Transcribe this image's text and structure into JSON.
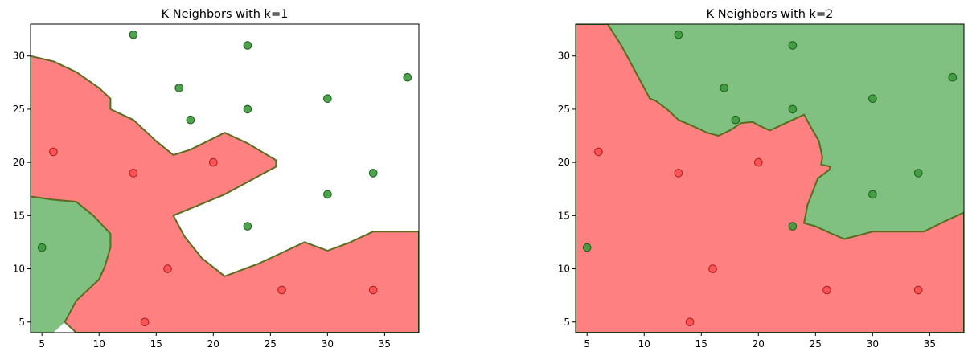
{
  "colors": {
    "red_region": "#ff8080",
    "green_region": "#80c080",
    "red_point": "#ff4d4d",
    "green_point": "#3a9a3a",
    "boundary_green": "#2e7d1a",
    "boundary_red": "#d63a2a"
  },
  "chart_data": [
    {
      "type": "scatter",
      "title": "K Neighbors with k=1",
      "xlabel": "",
      "ylabel": "",
      "xlim": [
        4,
        38
      ],
      "ylim": [
        4,
        33
      ],
      "xticks": [
        5,
        10,
        15,
        20,
        25,
        30,
        35
      ],
      "yticks": [
        5,
        10,
        15,
        20,
        25,
        30
      ],
      "grid": false,
      "points": [
        {
          "x": 6,
          "y": 21,
          "class": "red"
        },
        {
          "x": 13,
          "y": 19,
          "class": "red"
        },
        {
          "x": 20,
          "y": 20,
          "class": "red"
        },
        {
          "x": 16,
          "y": 10,
          "class": "red"
        },
        {
          "x": 14,
          "y": 5,
          "class": "red"
        },
        {
          "x": 26,
          "y": 8,
          "class": "red"
        },
        {
          "x": 34,
          "y": 8,
          "class": "red"
        },
        {
          "x": 13,
          "y": 32,
          "class": "green"
        },
        {
          "x": 23,
          "y": 31,
          "class": "green"
        },
        {
          "x": 17,
          "y": 27,
          "class": "green"
        },
        {
          "x": 18,
          "y": 24,
          "class": "green"
        },
        {
          "x": 23,
          "y": 25,
          "class": "green"
        },
        {
          "x": 30,
          "y": 26,
          "class": "green"
        },
        {
          "x": 37,
          "y": 28,
          "class": "green"
        },
        {
          "x": 34,
          "y": 19,
          "class": "green"
        },
        {
          "x": 30,
          "y": 17,
          "class": "green"
        },
        {
          "x": 23,
          "y": 14,
          "class": "green"
        },
        {
          "x": 5,
          "y": 12,
          "class": "green"
        }
      ],
      "regions": [
        {
          "class": "red",
          "points": [
            [
              4,
              30
            ],
            [
              6,
              29.5
            ],
            [
              8,
              28.5
            ],
            [
              10,
              27
            ],
            [
              11,
              26
            ],
            [
              11,
              25
            ],
            [
              13,
              24
            ],
            [
              15,
              22
            ],
            [
              16.5,
              20.7
            ],
            [
              18,
              21.2
            ],
            [
              21,
              22.8
            ],
            [
              23,
              21.8
            ],
            [
              25.5,
              20.2
            ],
            [
              25.5,
              19.6
            ],
            [
              21,
              17
            ],
            [
              16.5,
              15
            ],
            [
              17.5,
              13
            ],
            [
              19,
              11
            ],
            [
              21,
              9.3
            ],
            [
              24,
              10.5
            ],
            [
              28,
              12.5
            ],
            [
              30,
              11.7
            ],
            [
              32,
              12.5
            ],
            [
              34,
              13.5
            ],
            [
              38,
              13.5
            ],
            [
              38,
              4
            ],
            [
              8,
              4
            ],
            [
              7,
              5
            ],
            [
              8,
              7
            ],
            [
              10,
              9
            ],
            [
              10.5,
              10.2
            ],
            [
              11,
              12
            ],
            [
              11,
              13.3
            ],
            [
              9.5,
              15
            ],
            [
              8,
              16.3
            ],
            [
              6,
              16.5
            ],
            [
              4,
              16.8
            ]
          ]
        },
        {
          "class": "green",
          "points": [
            [
              4,
              16.8
            ],
            [
              6,
              16.5
            ],
            [
              8,
              16.3
            ],
            [
              9.5,
              15
            ],
            [
              11,
              13.3
            ],
            [
              11,
              12
            ],
            [
              10.5,
              10.2
            ],
            [
              10,
              9
            ],
            [
              8,
              7
            ],
            [
              7,
              5
            ],
            [
              6,
              4
            ],
            [
              4,
              4
            ]
          ]
        }
      ]
    },
    {
      "type": "scatter",
      "title": "K Neighbors with k=2",
      "xlabel": "",
      "ylabel": "",
      "xlim": [
        4,
        38
      ],
      "ylim": [
        4,
        33
      ],
      "xticks": [
        5,
        10,
        15,
        20,
        25,
        30,
        35
      ],
      "yticks": [
        5,
        10,
        15,
        20,
        25,
        30
      ],
      "grid": false,
      "points": [
        {
          "x": 6,
          "y": 21,
          "class": "red"
        },
        {
          "x": 13,
          "y": 19,
          "class": "red"
        },
        {
          "x": 20,
          "y": 20,
          "class": "red"
        },
        {
          "x": 16,
          "y": 10,
          "class": "red"
        },
        {
          "x": 14,
          "y": 5,
          "class": "red"
        },
        {
          "x": 26,
          "y": 8,
          "class": "red"
        },
        {
          "x": 34,
          "y": 8,
          "class": "red"
        },
        {
          "x": 13,
          "y": 32,
          "class": "green"
        },
        {
          "x": 23,
          "y": 31,
          "class": "green"
        },
        {
          "x": 17,
          "y": 27,
          "class": "green"
        },
        {
          "x": 18,
          "y": 24,
          "class": "green"
        },
        {
          "x": 23,
          "y": 25,
          "class": "green"
        },
        {
          "x": 30,
          "y": 26,
          "class": "green"
        },
        {
          "x": 37,
          "y": 28,
          "class": "green"
        },
        {
          "x": 34,
          "y": 19,
          "class": "green"
        },
        {
          "x": 30,
          "y": 17,
          "class": "green"
        },
        {
          "x": 23,
          "y": 14,
          "class": "green"
        },
        {
          "x": 5,
          "y": 12,
          "class": "green"
        }
      ],
      "regions": [
        {
          "class": "red",
          "points": [
            [
              4,
              33
            ],
            [
              6.8,
              33
            ],
            [
              8,
              31
            ],
            [
              9,
              29
            ],
            [
              10,
              27
            ],
            [
              10.5,
              26
            ],
            [
              11,
              25.8
            ],
            [
              12,
              25
            ],
            [
              13,
              24
            ],
            [
              14.5,
              23.3
            ],
            [
              15.5,
              22.8
            ],
            [
              16.5,
              22.5
            ],
            [
              17.5,
              23
            ],
            [
              18.5,
              23.7
            ],
            [
              19.5,
              23.8
            ],
            [
              20,
              23.5
            ],
            [
              21,
              23
            ],
            [
              22,
              23.5
            ],
            [
              23,
              24
            ],
            [
              24,
              24.5
            ],
            [
              24.5,
              23.5
            ],
            [
              25.3,
              22
            ],
            [
              25.6,
              20.5
            ],
            [
              25.5,
              19.8
            ],
            [
              26.3,
              19.6
            ],
            [
              26.2,
              19.3
            ],
            [
              25.2,
              18.5
            ],
            [
              24.3,
              16
            ],
            [
              24,
              14.3
            ],
            [
              25,
              14
            ],
            [
              26,
              13.5
            ],
            [
              27.5,
              12.8
            ],
            [
              29,
              13.2
            ],
            [
              30,
              13.5
            ],
            [
              34.5,
              13.5
            ],
            [
              36,
              14.3
            ],
            [
              38,
              15.3
            ],
            [
              38,
              4
            ],
            [
              4,
              4
            ]
          ]
        },
        {
          "class": "green",
          "points": [
            [
              6.8,
              33
            ],
            [
              38,
              33
            ],
            [
              38,
              15.3
            ],
            [
              36,
              14.3
            ],
            [
              34.5,
              13.5
            ],
            [
              30,
              13.5
            ],
            [
              29,
              13.2
            ],
            [
              27.5,
              12.8
            ],
            [
              26,
              13.5
            ],
            [
              25,
              14
            ],
            [
              24,
              14.3
            ],
            [
              24.3,
              16
            ],
            [
              25.2,
              18.5
            ],
            [
              26.2,
              19.3
            ],
            [
              26.3,
              19.6
            ],
            [
              25.5,
              19.8
            ],
            [
              25.6,
              20.5
            ],
            [
              25.3,
              22
            ],
            [
              24.5,
              23.5
            ],
            [
              24,
              24.5
            ],
            [
              23,
              24
            ],
            [
              22,
              23.5
            ],
            [
              21,
              23
            ],
            [
              20,
              23.5
            ],
            [
              19.5,
              23.8
            ],
            [
              18.5,
              23.7
            ],
            [
              17.5,
              23
            ],
            [
              16.5,
              22.5
            ],
            [
              15.5,
              22.8
            ],
            [
              14.5,
              23.3
            ],
            [
              13,
              24
            ],
            [
              12,
              25
            ],
            [
              11,
              25.8
            ],
            [
              10.5,
              26
            ],
            [
              10,
              27
            ],
            [
              9,
              29
            ],
            [
              8,
              31
            ]
          ]
        }
      ]
    }
  ]
}
